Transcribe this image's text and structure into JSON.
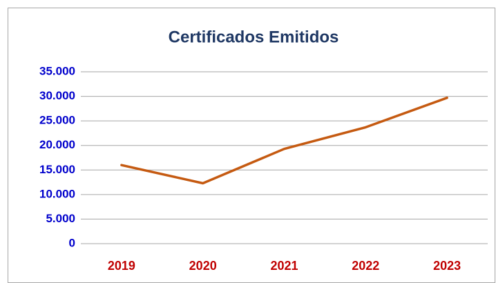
{
  "chart_data": {
    "type": "line",
    "title": "Certificados Emitidos",
    "categories": [
      "2019",
      "2020",
      "2021",
      "2022",
      "2023"
    ],
    "values": [
      16000,
      12300,
      19300,
      23700,
      29700
    ],
    "color": "#c55a11",
    "ylim": [
      0,
      35000
    ],
    "yticks": [
      0,
      {
        "value": 5000,
        "label": "5.000"
      },
      {
        "value": 10000,
        "label": "10.000"
      },
      {
        "value": 15000,
        "label": "15.000"
      },
      {
        "value": 20000,
        "label": "20.000"
      },
      {
        "value": 25000,
        "label": "25.000"
      },
      {
        "value": 30000,
        "label": "30.000"
      },
      {
        "value": 35000,
        "label": "35.000"
      }
    ],
    "grid": true
  }
}
